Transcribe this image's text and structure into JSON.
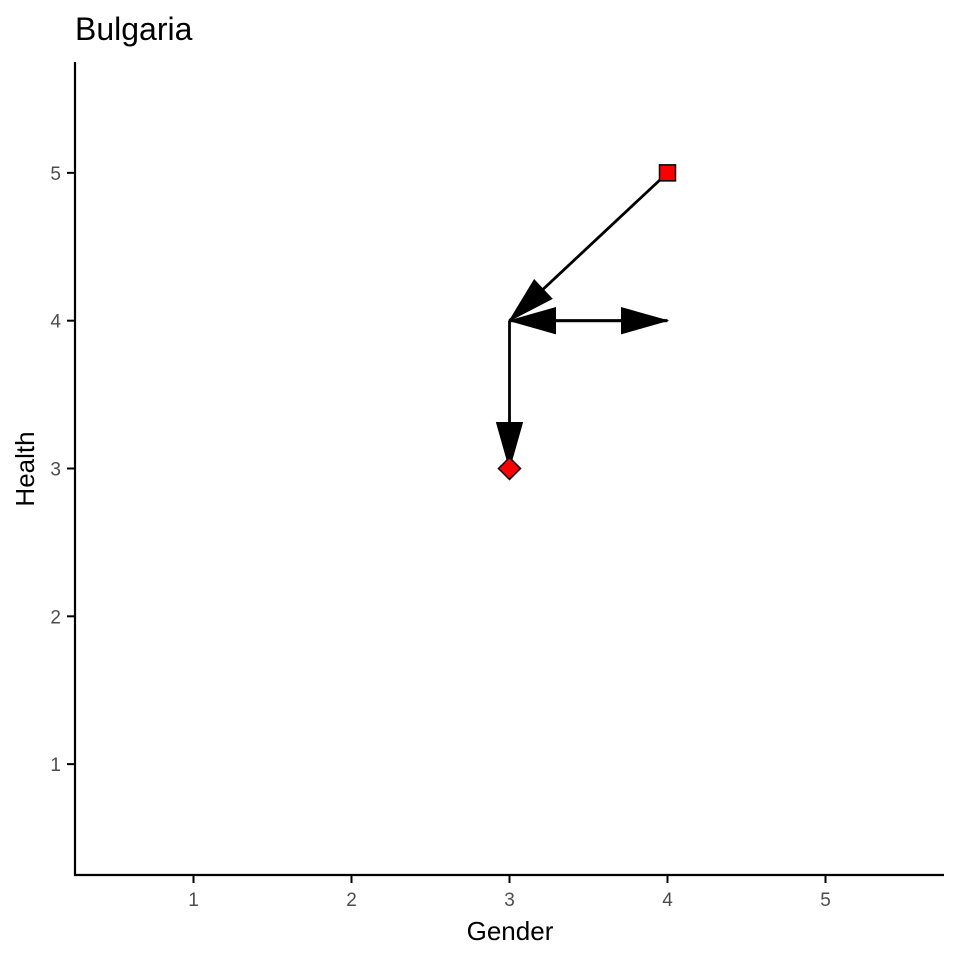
{
  "chart_data": {
    "type": "scatter",
    "title": "Bulgaria",
    "xlabel": "Gender",
    "ylabel": "Health",
    "xlim": [
      0.25,
      5.75
    ],
    "ylim": [
      0.25,
      5.75
    ],
    "xticks": [
      1,
      2,
      3,
      4,
      5
    ],
    "yticks": [
      1,
      2,
      3,
      4,
      5
    ],
    "grid": false,
    "points": [
      {
        "x": 4,
        "y": 5,
        "shape": "square",
        "fill": "#ff0000"
      },
      {
        "x": 3,
        "y": 3,
        "shape": "diamond",
        "fill": "#ff0000"
      }
    ],
    "arrows": [
      {
        "from": [
          4,
          5
        ],
        "to": [
          3,
          4
        ]
      },
      {
        "from": [
          3,
          4
        ],
        "to": [
          4,
          4
        ]
      },
      {
        "from": [
          4,
          4
        ],
        "to": [
          3,
          4
        ]
      },
      {
        "from": [
          3,
          4
        ],
        "to": [
          3,
          3
        ]
      }
    ]
  }
}
